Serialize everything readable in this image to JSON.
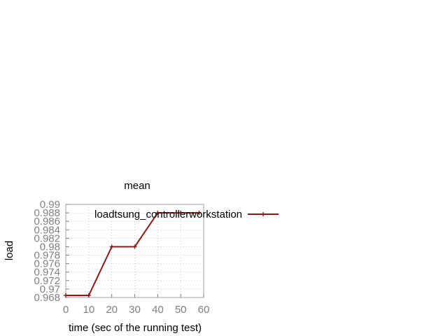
{
  "chart_data": {
    "type": "line",
    "title": "mean",
    "xlabel": "time (sec of the running test)",
    "ylabel": "load",
    "xlim": [
      0,
      60
    ],
    "ylim": [
      0.968,
      0.99
    ],
    "xticks": [
      0,
      10,
      20,
      30,
      40,
      50,
      60
    ],
    "xtick_labels": [
      "0",
      "10",
      "20",
      "30",
      "40",
      "50",
      "60"
    ],
    "yticks": [
      0.968,
      0.97,
      0.972,
      0.974,
      0.976,
      0.978,
      0.98,
      0.982,
      0.984,
      0.986,
      0.988,
      0.99
    ],
    "ytick_labels": [
      "0.968",
      "0.97",
      "0.972",
      "0.974",
      "0.976",
      "0.978",
      "0.98",
      "0.982",
      "0.984",
      "0.986",
      "0.988",
      "0.99"
    ],
    "grid": true,
    "legend_position": "top-right",
    "series": [
      {
        "name": "loadtsung_controllerworkstation",
        "color": "#8b1a1a",
        "marker": "plus",
        "x": [
          0,
          10,
          20,
          30,
          40,
          50,
          58
        ],
        "y": [
          0.9685,
          0.9685,
          0.98,
          0.98,
          0.988,
          0.988,
          0.988
        ]
      }
    ]
  }
}
